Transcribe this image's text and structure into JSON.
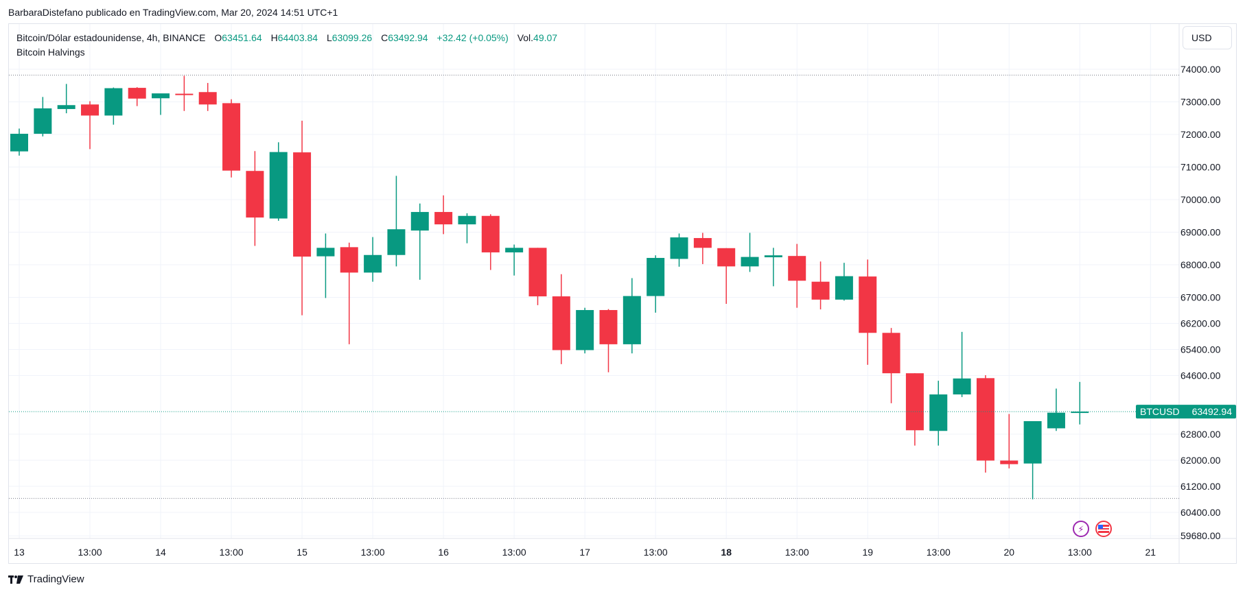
{
  "publisher": "BarbaraDistefano publicado en TradingView.com, Mar 20, 2024 14:51 UTC+1",
  "legend": {
    "symbol": "Bitcoin/Dólar estadounidense, 4h, BINANCE",
    "o_label": "O",
    "o": "63451.64",
    "h_label": "H",
    "h": "64403.84",
    "l_label": "L",
    "l": "63099.26",
    "c_label": "C",
    "c": "63492.94",
    "change": "+32.42 (+0.05%)",
    "vol_label": "Vol.",
    "vol": "49.07",
    "indicator": "Bitcoin Halvings"
  },
  "currency_button": "USD",
  "brand": "TradingView",
  "colors": {
    "up": "#089981",
    "down": "#f23645",
    "grid": "#f0f3fa",
    "price_line": "#089981"
  },
  "chart_data": {
    "type": "candlestick",
    "y_axis_ticks": [
      "74000.00",
      "73000.00",
      "72000.00",
      "71000.00",
      "70000.00",
      "69000.00",
      "68000.00",
      "67000.00",
      "66200.00",
      "65400.00",
      "64600.00",
      "62800.00",
      "62000.00",
      "61200.00",
      "60400.00",
      "59680.00"
    ],
    "x_axis_ticks": [
      "13",
      "13:00",
      "14",
      "13:00",
      "15",
      "13:00",
      "16",
      "13:00",
      "17",
      "13:00",
      "18",
      "13:00",
      "19",
      "13:00",
      "20",
      "13:00",
      "21"
    ],
    "ylim": [
      59680,
      75000
    ],
    "last_price_label": {
      "name": "BTCUSD",
      "value": "63492.94"
    },
    "candles": [
      {
        "o": 71480,
        "h": 72180,
        "l": 71350,
        "c": 72020
      },
      {
        "o": 72020,
        "h": 73150,
        "l": 71940,
        "c": 72800
      },
      {
        "o": 72780,
        "h": 73550,
        "l": 72650,
        "c": 72900
      },
      {
        "o": 72920,
        "h": 73020,
        "l": 71550,
        "c": 72580
      },
      {
        "o": 72580,
        "h": 73440,
        "l": 72300,
        "c": 73420
      },
      {
        "o": 73430,
        "h": 73450,
        "l": 72870,
        "c": 73100
      },
      {
        "o": 73110,
        "h": 73250,
        "l": 72600,
        "c": 73260
      },
      {
        "o": 73250,
        "h": 73800,
        "l": 72720,
        "c": 73240
      },
      {
        "o": 73300,
        "h": 73580,
        "l": 72720,
        "c": 72920
      },
      {
        "o": 72960,
        "h": 73080,
        "l": 70680,
        "c": 70890
      },
      {
        "o": 70880,
        "h": 71490,
        "l": 68580,
        "c": 69450
      },
      {
        "o": 69420,
        "h": 71760,
        "l": 69350,
        "c": 71460
      },
      {
        "o": 71450,
        "h": 72420,
        "l": 66450,
        "c": 68250
      },
      {
        "o": 68260,
        "h": 68960,
        "l": 66980,
        "c": 68520
      },
      {
        "o": 68540,
        "h": 68680,
        "l": 65560,
        "c": 67760
      },
      {
        "o": 67760,
        "h": 68850,
        "l": 67480,
        "c": 68300
      },
      {
        "o": 68300,
        "h": 70730,
        "l": 67950,
        "c": 69090
      },
      {
        "o": 69050,
        "h": 69880,
        "l": 67540,
        "c": 69620
      },
      {
        "o": 69620,
        "h": 70130,
        "l": 68940,
        "c": 69240
      },
      {
        "o": 69240,
        "h": 69580,
        "l": 68660,
        "c": 69500
      },
      {
        "o": 69500,
        "h": 69550,
        "l": 67840,
        "c": 68380
      },
      {
        "o": 68380,
        "h": 68620,
        "l": 67670,
        "c": 68520
      },
      {
        "o": 68520,
        "h": 68520,
        "l": 66760,
        "c": 67030
      },
      {
        "o": 67030,
        "h": 67710,
        "l": 64950,
        "c": 65380
      },
      {
        "o": 65380,
        "h": 66680,
        "l": 65280,
        "c": 66610
      },
      {
        "o": 66610,
        "h": 66640,
        "l": 64700,
        "c": 65560
      },
      {
        "o": 65560,
        "h": 67590,
        "l": 65280,
        "c": 67040
      },
      {
        "o": 67040,
        "h": 68290,
        "l": 66530,
        "c": 68210
      },
      {
        "o": 68180,
        "h": 68960,
        "l": 67940,
        "c": 68840
      },
      {
        "o": 68820,
        "h": 68980,
        "l": 68020,
        "c": 68520
      },
      {
        "o": 68510,
        "h": 68510,
        "l": 66800,
        "c": 67950
      },
      {
        "o": 67950,
        "h": 68980,
        "l": 67780,
        "c": 68240
      },
      {
        "o": 68230,
        "h": 68520,
        "l": 67340,
        "c": 68290
      },
      {
        "o": 68270,
        "h": 68640,
        "l": 66680,
        "c": 67510
      },
      {
        "o": 67480,
        "h": 68100,
        "l": 66630,
        "c": 66930
      },
      {
        "o": 66930,
        "h": 68060,
        "l": 66900,
        "c": 67650
      },
      {
        "o": 67640,
        "h": 68160,
        "l": 64930,
        "c": 65910
      },
      {
        "o": 65910,
        "h": 66060,
        "l": 63750,
        "c": 64670
      },
      {
        "o": 64670,
        "h": 64670,
        "l": 62450,
        "c": 62920
      },
      {
        "o": 62900,
        "h": 64440,
        "l": 62450,
        "c": 64020
      },
      {
        "o": 64020,
        "h": 65940,
        "l": 63940,
        "c": 64510
      },
      {
        "o": 64520,
        "h": 64610,
        "l": 61620,
        "c": 61990
      },
      {
        "o": 61990,
        "h": 63420,
        "l": 61750,
        "c": 61880
      },
      {
        "o": 61900,
        "h": 63150,
        "l": 60800,
        "c": 63200
      },
      {
        "o": 62980,
        "h": 64200,
        "l": 62900,
        "c": 63460
      },
      {
        "o": 63451.64,
        "h": 64403.84,
        "l": 63099.26,
        "c": 63492.94
      }
    ],
    "reference_lines": [
      73820,
      60830
    ]
  }
}
